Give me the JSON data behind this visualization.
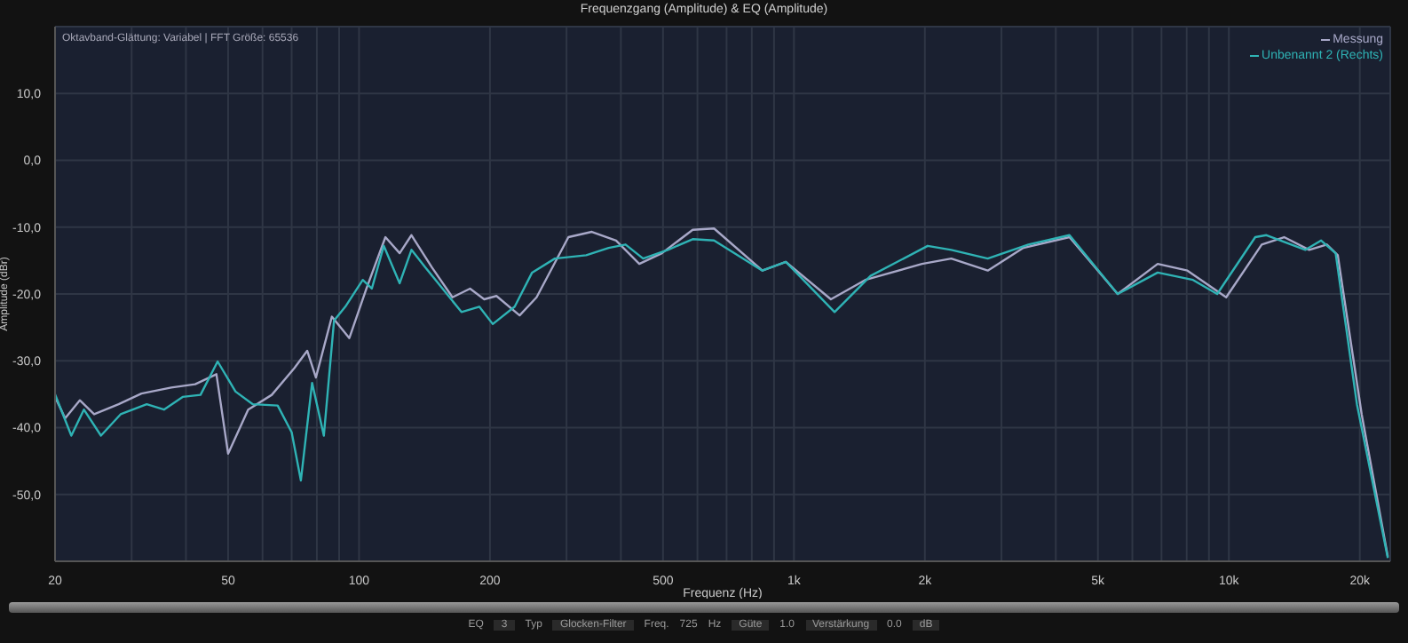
{
  "chart_data": {
    "type": "line",
    "title": "Frequenzgang (Amplitude) & EQ (Amplitude)",
    "xlabel": "Frequenz (Hz)",
    "ylabel": "Amplitude (dBr)",
    "annotations": [
      "Oktavband-Glättung: Variabel | FFT Größe: 65536",
      "EQ",
      "3",
      "Typ",
      "Glocken-Filter",
      "Freq.",
      "725",
      "Hz",
      "Güte",
      "1.0",
      "Verstärkung",
      "0.0",
      "dB"
    ],
    "log": "x",
    "grid": true,
    "legend": "top right",
    "marker": "none",
    "line_style": "solid",
    "xlim": [
      20,
      23500
    ],
    "ylim": [
      -60,
      20
    ],
    "xticks": [
      20,
      {
        "value": 30,
        "label": null
      },
      {
        "value": 40,
        "label": null
      },
      50,
      {
        "value": 60,
        "label": null
      },
      {
        "value": 70,
        "label": null
      },
      {
        "value": 80,
        "label": null
      },
      {
        "value": 90,
        "label": null
      },
      100,
      200,
      {
        "value": 300,
        "label": null
      },
      {
        "value": 400,
        "label": null
      },
      500,
      {
        "value": 600,
        "label": null
      },
      {
        "value": 700,
        "label": null
      },
      {
        "value": 800,
        "label": null
      },
      {
        "value": 900,
        "label": null
      },
      {
        "value": 1000,
        "label": "1k"
      },
      {
        "value": 2000,
        "label": "2k"
      },
      {
        "value": 3000,
        "label": null
      },
      {
        "value": 4000,
        "label": null
      },
      {
        "value": 5000,
        "label": "5k"
      },
      {
        "value": 6000,
        "label": null
      },
      {
        "value": 7000,
        "label": null
      },
      {
        "value": 8000,
        "label": null
      },
      {
        "value": 9000,
        "label": null
      },
      {
        "value": 10000,
        "label": "10k"
      },
      {
        "value": 20000,
        "label": "20k"
      }
    ],
    "yticks": [
      {
        "value": -50,
        "label": "-50,0"
      },
      {
        "value": -40,
        "label": "-40,0"
      },
      {
        "value": -30,
        "label": "-30,0"
      },
      {
        "value": -20,
        "label": "-20,0"
      },
      {
        "value": -10,
        "label": "-10,0"
      },
      {
        "value": 0,
        "label": "0,0"
      },
      {
        "value": 10,
        "label": "10,0"
      }
    ],
    "series": [
      {
        "name": "Messung",
        "color": "#a8a8c8",
        "x": [
          20,
          21.1,
          22.8,
          24.6,
          28,
          31.6,
          37,
          42,
          47,
          50,
          55.6,
          63,
          71,
          76,
          79.6,
          86.6,
          95,
          104,
          115,
          124,
          132,
          147,
          164,
          180,
          194,
          207,
          234,
          256,
          303,
          343,
          390,
          441,
          497,
          585,
          655,
          846,
          958,
          1216,
          1459,
          1970,
          2300,
          2790,
          3370,
          4300,
          5550,
          6860,
          8030,
          9860,
          11900,
          13400,
          15300,
          16800,
          17800,
          20200,
          23200
        ],
        "values": [
          -35.4,
          -38.6,
          -35.9,
          -38,
          -36.5,
          -34.9,
          -34,
          -33.5,
          -32,
          -43.9,
          -37.3,
          -35.1,
          -31.1,
          -28.5,
          -32.5,
          -23.4,
          -26.6,
          -19.2,
          -11.5,
          -13.9,
          -11.2,
          -16,
          -20.5,
          -19.2,
          -20.8,
          -20.3,
          -23.2,
          -20.5,
          -11.5,
          -10.7,
          -12,
          -15.5,
          -13.9,
          -10.4,
          -10.2,
          -16.5,
          -15.2,
          -20.8,
          -17.9,
          -15.5,
          -14.7,
          -16.5,
          -13.1,
          -11.5,
          -20,
          -15.5,
          -16.5,
          -20.5,
          -12.6,
          -11.5,
          -13.4,
          -12.6,
          -14.2,
          -38,
          -59.3
        ]
      },
      {
        "name": "Unbenannt 2 (Rechts)",
        "color": "#2fb3b5",
        "x": [
          20,
          21.8,
          23.3,
          25.5,
          28.3,
          32.5,
          35.6,
          39.3,
          43.2,
          47.3,
          52,
          57,
          65,
          70,
          73.5,
          78,
          83,
          87.6,
          93,
          102,
          107,
          114,
          124,
          132,
          142,
          172,
          189,
          203,
          228,
          250,
          282,
          333,
          375,
          410,
          450,
          513,
          585,
          655,
          846,
          958,
          1240,
          1500,
          2030,
          2300,
          2790,
          3460,
          4300,
          5550,
          6860,
          8270,
          9400,
          11500,
          12200,
          15000,
          16300,
          17600,
          19700,
          23200
        ],
        "values": [
          -35,
          -41.2,
          -37.3,
          -41.2,
          -38,
          -36.5,
          -37.3,
          -35.4,
          -35.1,
          -30.1,
          -34.6,
          -36.5,
          -36.7,
          -40.7,
          -47.9,
          -33.3,
          -41.2,
          -24,
          -21.9,
          -17.9,
          -19.2,
          -12.8,
          -18.4,
          -13.4,
          -16,
          -22.7,
          -21.9,
          -24.5,
          -21.9,
          -16.8,
          -14.7,
          -14.2,
          -13.1,
          -12.6,
          -14.7,
          -13.4,
          -11.8,
          -12,
          -16.5,
          -15.2,
          -22.7,
          -17.3,
          -12.8,
          -13.4,
          -14.7,
          -12.6,
          -11.2,
          -20,
          -16.8,
          -17.9,
          -20,
          -11.5,
          -11.2,
          -13.4,
          -12,
          -13.9,
          -36.5,
          -59.5
        ]
      }
    ]
  }
}
